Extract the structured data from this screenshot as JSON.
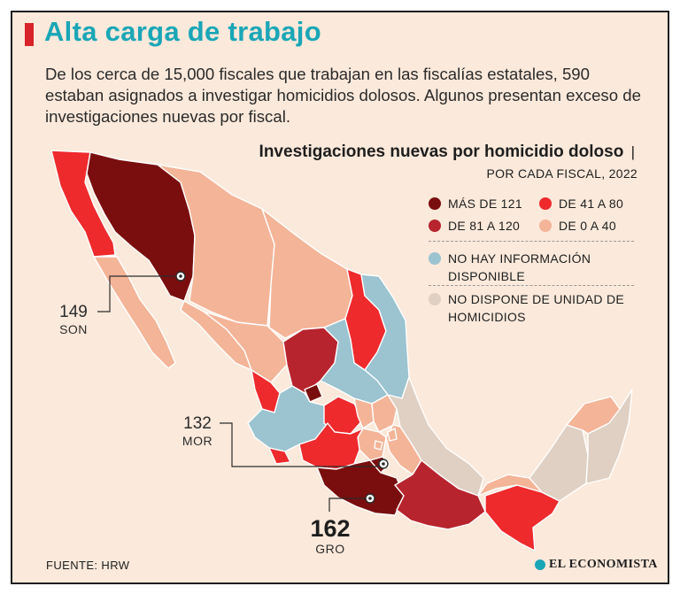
{
  "title": "Alta carga de trabajo",
  "intro": "De los cerca de 15,000 fiscales que trabajan en las fiscalías estatales, 590 estaban asignados a investigar homicidios dolosos. Algunos presentan exceso de investigaciones nuevas por fiscal.",
  "legend": {
    "title": "Investigaciones nuevas por homicidio doloso",
    "separator": "|",
    "subtitle": "POR CADA FISCAL, 2022",
    "items": [
      {
        "label": "MÁS DE 121",
        "color": "#7a0e0e"
      },
      {
        "label": "DE 41 A 80",
        "color": "#ee2a2d"
      },
      {
        "label": "DE 81 A 120",
        "color": "#b8242e"
      },
      {
        "label": "DE 0 A 40",
        "color": "#f4b498"
      },
      {
        "label": "NO HAY INFORMACIÓN DISPONIBLE",
        "color": "#9bc3d0"
      },
      {
        "label": "NO DISPONE DE UNIDAD DE HOMICIDIOS",
        "color": "#dfd0c3"
      }
    ]
  },
  "callouts": {
    "son": {
      "value": "149",
      "state": "SON"
    },
    "mor": {
      "value": "132",
      "state": "MOR"
    },
    "gro": {
      "value": "162",
      "state": "GRO"
    }
  },
  "source": "FUENTE: HRW",
  "logo": "EL ECONOMISTA"
}
